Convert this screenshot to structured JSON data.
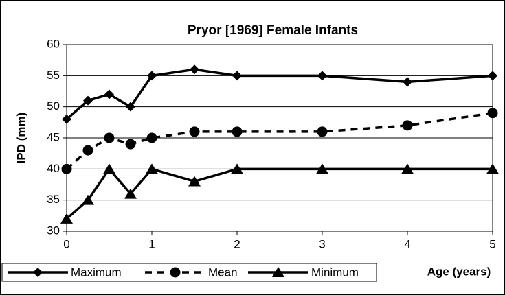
{
  "chart_data": {
    "type": "line",
    "title": "Pryor [1969] Female Infants",
    "x_label": "Age (years)",
    "y_label": "IPD (mm)",
    "x": [
      0,
      0.25,
      0.5,
      0.75,
      1,
      1.5,
      2,
      3,
      4,
      5
    ],
    "series": [
      {
        "name": "Maximum",
        "color": "#000000",
        "line_style": "solid",
        "marker": "diamond",
        "values": [
          48,
          51,
          52,
          50,
          55,
          56,
          55,
          55,
          54,
          55
        ]
      },
      {
        "name": "Mean",
        "color": "#000000",
        "line_style": "dashed",
        "marker": "circle",
        "values": [
          40,
          43,
          45,
          44,
          45,
          46,
          46,
          46,
          47,
          49
        ]
      },
      {
        "name": "Minimum",
        "color": "#000000",
        "line_style": "solid",
        "marker": "triangle",
        "values": [
          32,
          35,
          40,
          36,
          40,
          38,
          40,
          40,
          40,
          40
        ]
      }
    ],
    "xlim": [
      0,
      5
    ],
    "xticks": [
      0,
      1,
      2,
      3,
      4,
      5
    ],
    "ylim": [
      30,
      60
    ],
    "yticks": [
      30,
      35,
      40,
      45,
      50,
      55,
      60
    ],
    "grid": true,
    "legend": "bottom-left"
  }
}
